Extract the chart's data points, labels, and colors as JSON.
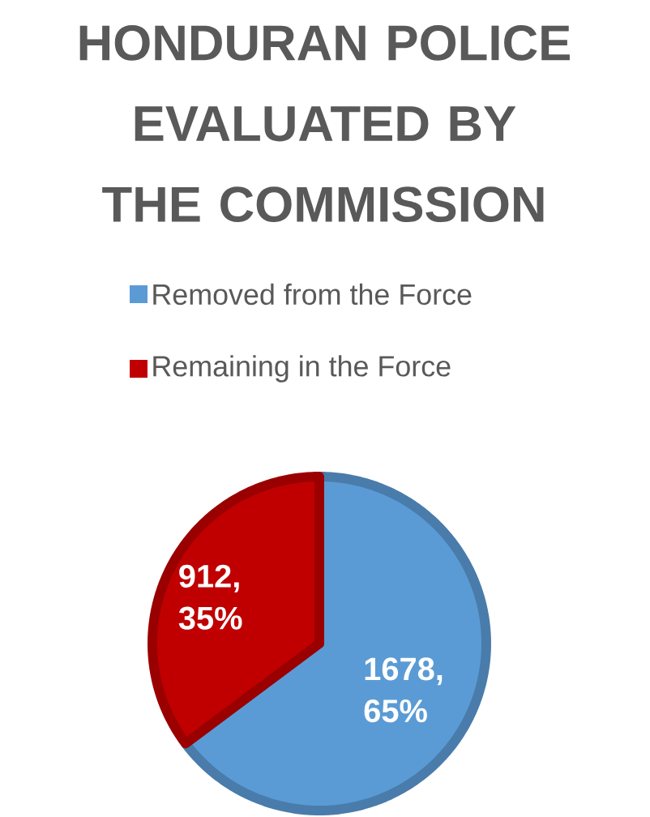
{
  "chart_data": {
    "type": "pie",
    "title": "HONDURAN POLICE EVALUATED BY THE COMMISSION",
    "categories": [
      "Removed from the Force",
      "Remaining in the Force"
    ],
    "values": [
      1678,
      912
    ],
    "colors": [
      "#5b9bd5",
      "#c00000"
    ],
    "value_labels": [
      "1678, 65%",
      "912, 35%"
    ],
    "legend": "top"
  }
}
